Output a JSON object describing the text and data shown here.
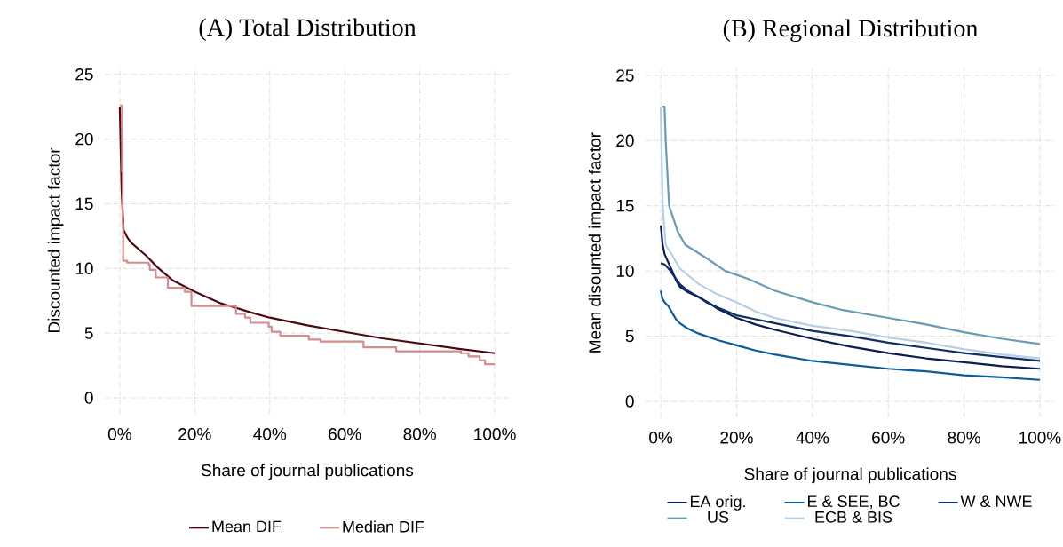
{
  "chart_data": [
    {
      "type": "line",
      "title": "(A) Total Distribution",
      "xlabel": "Share of journal publications",
      "ylabel": "Discounted impact factor",
      "xlim": [
        -4,
        104
      ],
      "ylim": [
        -1.2,
        25.5
      ],
      "xticks": [
        {
          "value": 0,
          "label": "0%"
        },
        {
          "value": 20,
          "label": "20%"
        },
        {
          "value": 40,
          "label": "40%"
        },
        {
          "value": 60,
          "label": "60%"
        },
        {
          "value": 80,
          "label": "80%"
        },
        {
          "value": 100,
          "label": "100%"
        }
      ],
      "yticks": [
        0,
        5,
        10,
        15,
        20,
        25
      ],
      "grid": true,
      "legend": "bottom",
      "series": [
        {
          "name": "Mean DIF",
          "color": "#4a0a0f",
          "type": "line",
          "x": [
            0,
            0.5,
            1,
            2,
            3,
            5,
            7,
            10,
            14,
            18,
            20,
            27,
            35,
            40,
            50,
            60,
            70,
            80,
            90,
            100
          ],
          "values": [
            22.5,
            16,
            13,
            12.4,
            12,
            11.5,
            11,
            10.1,
            9.1,
            8.5,
            8.2,
            7.3,
            6.6,
            6.2,
            5.6,
            5.1,
            4.6,
            4.2,
            3.8,
            3.45
          ]
        },
        {
          "name": "Median DIF",
          "color": "#d48c8c",
          "type": "step",
          "x": [
            0,
            0.6,
            0.75,
            0.9,
            2,
            7.7,
            8,
            9.6,
            12.8,
            17.3,
            19.1,
            31,
            33.4,
            34.8,
            39.7,
            40.5,
            42.8,
            50.4,
            53.5,
            65,
            73.7,
            91,
            93,
            96,
            97.4,
            100
          ],
          "values": [
            22.6,
            17.5,
            13.5,
            10.6,
            10.45,
            10.3,
            9.9,
            9.3,
            8.5,
            8.2,
            7.1,
            6.5,
            6.2,
            5.8,
            5.5,
            5.1,
            4.8,
            4.5,
            4.35,
            3.9,
            3.6,
            3.45,
            3.2,
            2.9,
            2.6,
            2.6
          ]
        }
      ]
    },
    {
      "type": "line",
      "title": "(B) Regional Distribution",
      "xlabel": "Share of journal publications",
      "ylabel": "Mean disounted impact factor",
      "xlim": [
        -4,
        104
      ],
      "ylim": [
        -1.2,
        25.5
      ],
      "xticks": [
        {
          "value": 0,
          "label": "0%"
        },
        {
          "value": 20,
          "label": "20%"
        },
        {
          "value": 40,
          "label": "40%"
        },
        {
          "value": 60,
          "label": "60%"
        },
        {
          "value": 80,
          "label": "80%"
        },
        {
          "value": 100,
          "label": "100%"
        }
      ],
      "yticks": [
        0,
        5,
        10,
        15,
        20,
        25
      ],
      "grid": true,
      "legend": "bottom",
      "series": [
        {
          "name": "EA orig.",
          "color": "#0b1d4f",
          "x": [
            0,
            0.5,
            1,
            3,
            4,
            5,
            7,
            10,
            13,
            15,
            20,
            25,
            30,
            40,
            50,
            60,
            70,
            80,
            90,
            100
          ],
          "values": [
            13.5,
            12,
            11.3,
            10,
            9.3,
            8.8,
            8.4,
            8,
            7.5,
            7.1,
            6.4,
            5.9,
            5.5,
            4.8,
            4.2,
            3.7,
            3.3,
            3,
            2.7,
            2.5
          ]
        },
        {
          "name": "E & SEE, BC",
          "color": "#0b5c99",
          "x": [
            0,
            0.4,
            1,
            2,
            3,
            4,
            5,
            7,
            10,
            15,
            20,
            25,
            30,
            40,
            50,
            60,
            70,
            80,
            90,
            100
          ],
          "values": [
            8.5,
            7.9,
            7.6,
            7.3,
            6.8,
            6.3,
            6,
            5.6,
            5.2,
            4.7,
            4.3,
            3.9,
            3.6,
            3.1,
            2.8,
            2.5,
            2.3,
            2,
            1.85,
            1.65
          ]
        },
        {
          "name": "W & NWE",
          "color": "#0d2f66",
          "x": [
            0,
            1,
            2,
            4,
            5,
            7,
            10,
            12,
            15,
            20,
            25,
            30,
            40,
            50,
            60,
            70,
            80,
            90,
            100
          ],
          "values": [
            10.6,
            10.5,
            10.2,
            9.4,
            9,
            8.5,
            8,
            7.6,
            7.2,
            6.6,
            6.3,
            6,
            5.4,
            5,
            4.5,
            4.1,
            3.7,
            3.4,
            3.1
          ]
        },
        {
          "name": "US",
          "color": "#6a9bb5",
          "x": [
            0.4,
            1,
            1.3,
            2.2,
            4.5,
            6.5,
            12,
            17,
            23,
            30,
            40,
            48,
            60,
            70,
            80,
            90,
            100
          ],
          "values": [
            22.6,
            22.6,
            20,
            15,
            13,
            12,
            11,
            10,
            9.4,
            8.5,
            7.6,
            7,
            6.4,
            5.9,
            5.3,
            4.8,
            4.4
          ]
        },
        {
          "name": "ECB & BIS",
          "color": "#b5cfe3",
          "x": [
            0,
            0.5,
            1.3,
            3,
            5,
            7.5,
            10,
            15,
            20,
            25,
            30,
            40,
            50,
            60,
            70,
            80,
            90,
            100
          ],
          "values": [
            22.6,
            15,
            12,
            11.2,
            10.2,
            9.6,
            9,
            8.2,
            7.6,
            6.9,
            6.4,
            5.8,
            5.4,
            4.9,
            4.5,
            4,
            3.6,
            3.3
          ]
        }
      ]
    }
  ]
}
